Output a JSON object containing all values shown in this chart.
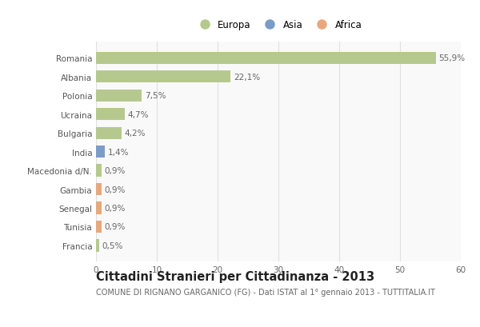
{
  "categories": [
    "Romania",
    "Albania",
    "Polonia",
    "Ucraina",
    "Bulgaria",
    "India",
    "Macedonia d/N.",
    "Gambia",
    "Senegal",
    "Tunisia",
    "Francia"
  ],
  "values": [
    55.9,
    22.1,
    7.5,
    4.7,
    4.2,
    1.4,
    0.9,
    0.9,
    0.9,
    0.9,
    0.5
  ],
  "labels": [
    "55,9%",
    "22,1%",
    "7,5%",
    "4,7%",
    "4,2%",
    "1,4%",
    "0,9%",
    "0,9%",
    "0,9%",
    "0,9%",
    "0,5%"
  ],
  "colors": [
    "#b5c98e",
    "#b5c98e",
    "#b5c98e",
    "#b5c98e",
    "#b5c98e",
    "#7a9cc7",
    "#b5c98e",
    "#e8a87c",
    "#e8a87c",
    "#e8a87c",
    "#b5c98e"
  ],
  "legend_labels": [
    "Europa",
    "Asia",
    "Africa"
  ],
  "legend_colors": [
    "#b5c98e",
    "#7a9cc7",
    "#e8a87c"
  ],
  "xlim": [
    0,
    60
  ],
  "xticks": [
    0,
    10,
    20,
    30,
    40,
    50,
    60
  ],
  "title": "Cittadini Stranieri per Cittadinanza - 2013",
  "subtitle": "COMUNE DI RIGNANO GARGANICO (FG) - Dati ISTAT al 1° gennaio 2013 - TUTTITALIA.IT",
  "background_color": "#ffffff",
  "plot_bg_color": "#f9f9f9",
  "grid_color": "#e0e0e0",
  "bar_height": 0.65,
  "label_fontsize": 7.5,
  "tick_fontsize": 7.5,
  "title_fontsize": 10.5,
  "subtitle_fontsize": 7.0
}
